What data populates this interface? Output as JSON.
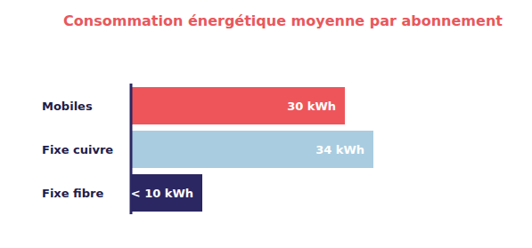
{
  "chart_data": {
    "type": "bar",
    "title": "Consommation énergétique moyenne par abonnement",
    "orientation": "horizontal",
    "categories": [
      "Mobiles",
      "Fixe cuivre",
      "Fixe fibre"
    ],
    "values": [
      30,
      34,
      10
    ],
    "value_labels": [
      "30 kWh",
      "34 kWh",
      "< 10 kWh"
    ],
    "colors": [
      "#ee555b",
      "#a9cce0",
      "#2b2762"
    ],
    "data_labels": true,
    "tick_labels": "y"
  }
}
